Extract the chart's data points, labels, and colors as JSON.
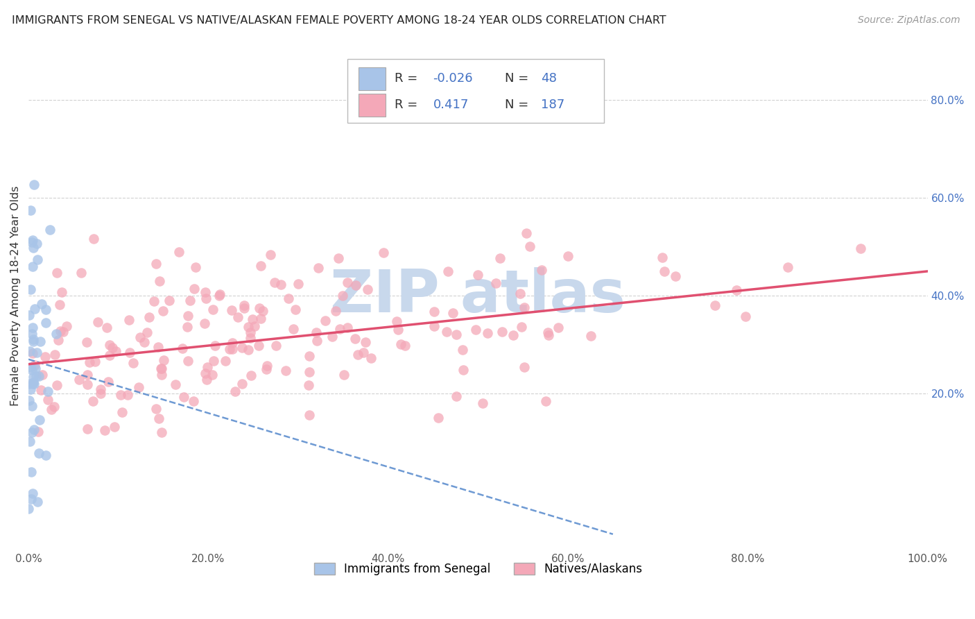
{
  "title": "IMMIGRANTS FROM SENEGAL VS NATIVE/ALASKAN FEMALE POVERTY AMONG 18-24 YEAR OLDS CORRELATION CHART",
  "source": "Source: ZipAtlas.com",
  "ylabel": "Female Poverty Among 18-24 Year Olds",
  "legend_label1": "Immigrants from Senegal",
  "legend_label2": "Natives/Alaskans",
  "r1": -0.026,
  "n1": 48,
  "r2": 0.417,
  "n2": 187,
  "color1": "#a8c4e8",
  "color2": "#f4a8b8",
  "line_color1": "#5588cc",
  "line_color2": "#e05070",
  "text_color_r": "#4472c4",
  "xlim": [
    0.0,
    1.0
  ],
  "ylim": [
    -0.12,
    0.92
  ],
  "x_tick_labels": [
    "0.0%",
    "20.0%",
    "40.0%",
    "60.0%",
    "80.0%",
    "100.0%"
  ],
  "x_tick_vals": [
    0.0,
    0.2,
    0.4,
    0.6,
    0.8,
    1.0
  ],
  "y_tick_labels": [
    "20.0%",
    "40.0%",
    "60.0%",
    "80.0%"
  ],
  "y_tick_vals": [
    0.2,
    0.4,
    0.6,
    0.8
  ],
  "background_color": "#ffffff",
  "grid_color": "#cccccc",
  "watermark_text": "ZIP atlas",
  "watermark_color": "#c8d8ec"
}
